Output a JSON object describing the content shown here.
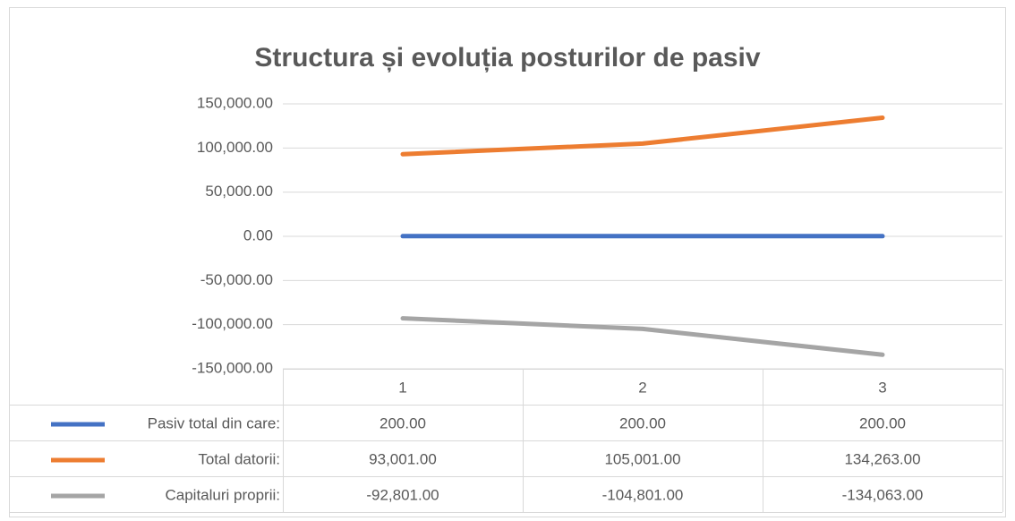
{
  "chart_data": {
    "type": "line",
    "title": "Structura și evoluția posturilor de pasiv",
    "categories": [
      "1",
      "2",
      "3"
    ],
    "series": [
      {
        "name": "Pasiv total din care:",
        "color": "#4472c4",
        "values": [
          200,
          200,
          200
        ],
        "value_labels": [
          "200.00",
          "200.00",
          "200.00"
        ]
      },
      {
        "name": "Total datorii:",
        "color": "#ed7d31",
        "values": [
          93001,
          105001,
          134263
        ],
        "value_labels": [
          "93,001.00",
          "105,001.00",
          "134,263.00"
        ]
      },
      {
        "name": "Capitaluri proprii:",
        "color": "#a5a5a5",
        "values": [
          -92801,
          -104801,
          -134063
        ],
        "value_labels": [
          "-92,801.00",
          "-104,801.00",
          "-134,063.00"
        ]
      }
    ],
    "ylim": [
      -150000,
      150000
    ],
    "yticks": [
      {
        "value": -150000,
        "label": "-150,000.00"
      },
      {
        "value": -100000,
        "label": "-100,000.00"
      },
      {
        "value": -50000,
        "label": "-50,000.00"
      },
      {
        "value": 0,
        "label": "0.00"
      },
      {
        "value": 50000,
        "label": "50,000.00"
      },
      {
        "value": 100000,
        "label": "100,000.00"
      },
      {
        "value": 150000,
        "label": "150,000.00"
      }
    ],
    "grid": true,
    "data_table": true
  }
}
